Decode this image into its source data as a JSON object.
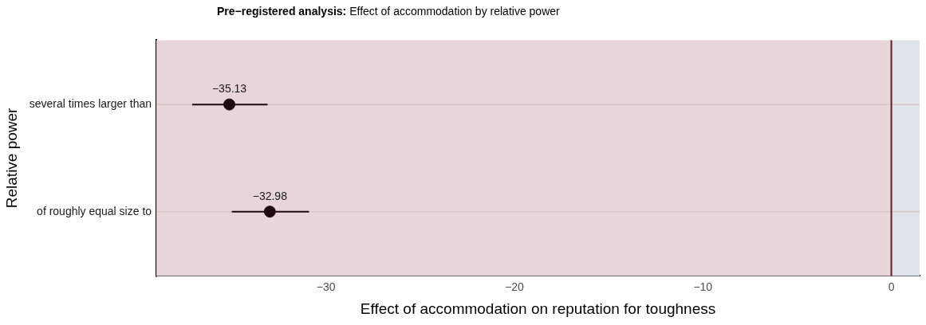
{
  "chart_data": {
    "type": "scatter",
    "title": "Pre−registered analysis: Effect of accommodation by relative power",
    "xlabel": "Effect of accommodation on reputation for toughness",
    "ylabel": "Relative power",
    "orientation": "horizontal",
    "categories": [
      "several times larger than",
      "of roughly equal size to"
    ],
    "series": [
      {
        "color": "#1f0a0d",
        "values": [
          -35.13,
          -32.98
        ],
        "errors": [
          [
            -37.1,
            -33.1
          ],
          [
            -35.0,
            -30.9
          ]
        ]
      }
    ],
    "xlim": [
      -39,
      1.5
    ],
    "xticks": [
      -30,
      -20,
      -10,
      0
    ],
    "bands": [
      {
        "axis": "x",
        "from": -39,
        "to": 0,
        "color": "#e8d5d8"
      },
      {
        "axis": "x",
        "from": 0,
        "to": 1.5,
        "color": "#dfe3ea"
      }
    ],
    "ref_lines": [
      {
        "axis": "x",
        "value": 0,
        "color": "#6b1a22"
      }
    ],
    "grid": "y",
    "marker": "circle",
    "data_labels": true,
    "legend": false
  }
}
